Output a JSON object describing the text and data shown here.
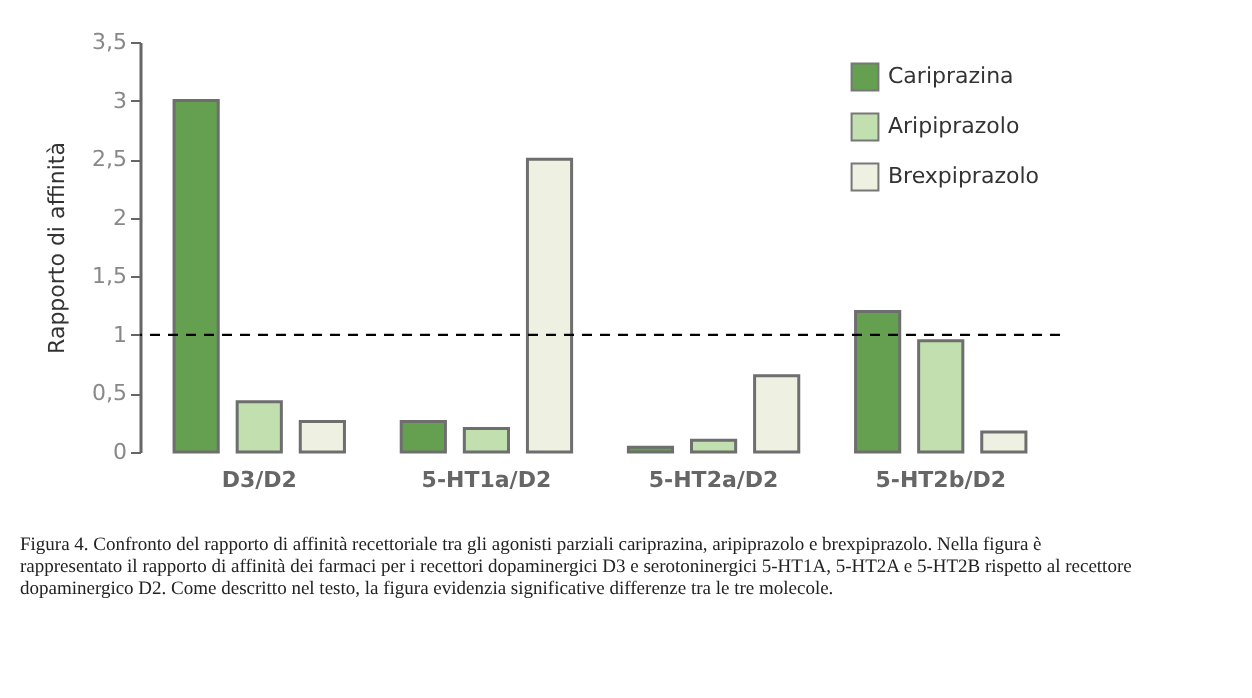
{
  "chart_data": {
    "type": "bar",
    "ylabel": "Rapporto  di  affinità",
    "categories": [
      "D3/D2",
      "5-HT1a/D2",
      "5-HT2a/D2",
      "5-HT2b/D2"
    ],
    "series": [
      {
        "name": "Cariprazina",
        "color": "#64a050",
        "values": [
          3.0,
          0.26,
          0.04,
          1.2
        ]
      },
      {
        "name": "Aripiprazolo",
        "color": "#c2dfb0",
        "values": [
          0.43,
          0.2,
          0.1,
          0.95
        ]
      },
      {
        "name": "Brexpiprazolo",
        "color": "#eef1e2",
        "values": [
          0.26,
          2.5,
          0.65,
          0.17
        ]
      }
    ],
    "ylim": [
      0,
      3.5
    ],
    "yticks": [
      0,
      {
        "value": 0.5,
        "label": "0,5"
      },
      1,
      {
        "value": 1.5,
        "label": "1,5"
      },
      2,
      {
        "value": 2.5,
        "label": "2,5"
      },
      3,
      {
        "value": 3.5,
        "label": "3,5"
      }
    ],
    "ref_lines": [
      {
        "axis": "y",
        "value": 1,
        "color": "#000000",
        "line_style": "dashed"
      }
    ],
    "grid": false,
    "legend": "top right",
    "annotations": [
      "Figura 4. Confronto del rapporto di affinità recettoriale tra gli agonisti parziali cariprazina, aripiprazolo e brexpiprazolo. Nella figura è rappresentato il rapporto di affinità dei farmaci per i recettori dopaminergici D3 e serotoninergici 5-HT1A, 5-HT2A e 5-HT2B rispetto al recettore dopaminergico D2. Come descritto nel testo, la figura evidenzia significative differenze tra le tre molecole."
    ]
  }
}
